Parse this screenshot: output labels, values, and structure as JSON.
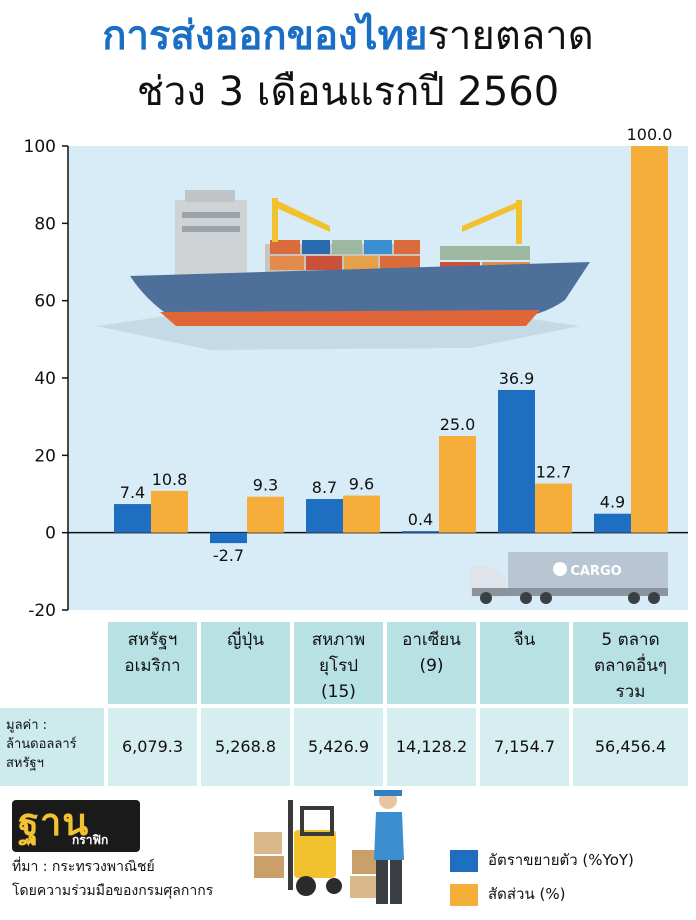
{
  "title": {
    "line1_highlight": "การส่งออกของไทย",
    "line1_rest": "รายตลาด",
    "line2": "ช่วง 3 เดือนแรกปี 2560"
  },
  "colors": {
    "growth": "#1e6fc2",
    "share": "#f6ae3a",
    "plot_bg": "#d7ecf6",
    "title_accent": "#1a6fc4"
  },
  "chart_data": {
    "type": "bar",
    "categories": [
      "สหรัฐฯ อเมริกา",
      "ญี่ปุ่น",
      "สหภาพยุโรป (15)",
      "อาเซียน (9)",
      "จีน",
      "5 ตลาด ตลาดอื่นๆ รวม"
    ],
    "series": [
      {
        "name": "อัตราขยายตัว (%YoY)",
        "values": [
          7.4,
          -2.7,
          8.7,
          0.4,
          36.9,
          4.9
        ]
      },
      {
        "name": "สัดส่วน (%)",
        "values": [
          10.8,
          9.3,
          9.6,
          25.0,
          12.7,
          100.0
        ]
      }
    ],
    "value_labels": [
      [
        "7.4",
        "-2.7",
        "8.7",
        "0.4",
        "36.9",
        "4.9"
      ],
      [
        "10.8",
        "9.3",
        "9.6",
        "25.0",
        "12.7",
        "100.0"
      ]
    ],
    "ylim": [
      -20,
      100
    ],
    "yticks": [
      100,
      80,
      60,
      40,
      20,
      0,
      -20
    ],
    "cargo_text": "CARGO"
  },
  "table": {
    "headers": [
      [
        "สหรัฐฯ",
        "อเมริกา"
      ],
      [
        "ญี่ปุ่น"
      ],
      [
        "สหภาพ",
        "ยุโรป",
        "(15)"
      ],
      [
        "อาเซียน",
        "(9)"
      ],
      [
        "จีน"
      ],
      [
        "5 ตลาด",
        "ตลาดอื่นๆ",
        "รวม"
      ]
    ],
    "row_label": [
      "มูลค่า :",
      "ล้านดอลลาร์",
      "สหรัฐฯ"
    ],
    "values": [
      "6,079.3",
      "5,268.8",
      "5,426.9",
      "14,128.2",
      "7,154.7",
      "56,456.4"
    ]
  },
  "logo": {
    "main": "ฐาน",
    "sub": "กราฟิก"
  },
  "source": {
    "line1": "ที่มา : กระทรวงพาณิชย์",
    "line2": "โดยความร่วมมือของกรมศุลกากร"
  },
  "legend": {
    "growth": "อัตราขยายตัว (%YoY)",
    "share": "สัดส่วน (%)"
  }
}
